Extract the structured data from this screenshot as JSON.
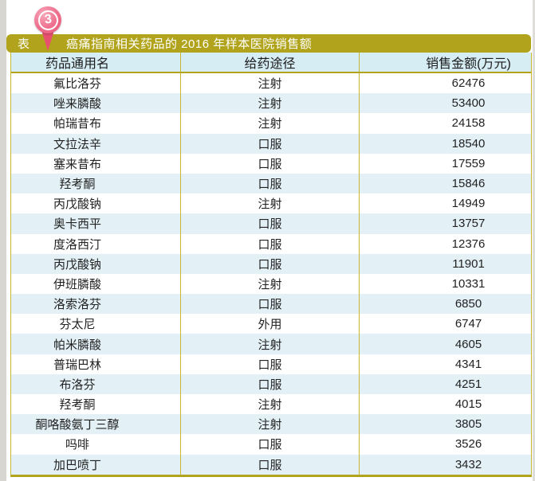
{
  "ui": {
    "badge": {
      "number": "3"
    },
    "title_bar": {
      "prefix": "表",
      "title": "癌痛指南相关药品的 2016 年样本医院销售额"
    }
  },
  "chart_data": {
    "type": "table",
    "title": "表3 癌痛指南相关药品的 2016 年样本医院销售额",
    "columns": [
      "药品通用名",
      "给药途径",
      "销售金额(万元)"
    ],
    "rows": [
      [
        "氟比洛芬",
        "注射",
        "62476"
      ],
      [
        "唑来膦酸",
        "注射",
        "53400"
      ],
      [
        "帕瑞昔布",
        "注射",
        "24158"
      ],
      [
        "文拉法辛",
        "口服",
        "18540"
      ],
      [
        "塞来昔布",
        "口服",
        "17559"
      ],
      [
        "羟考酮",
        "口服",
        "15846"
      ],
      [
        "丙戊酸钠",
        "注射",
        "14949"
      ],
      [
        "奥卡西平",
        "口服",
        "13757"
      ],
      [
        "度洛西汀",
        "口服",
        "12376"
      ],
      [
        "丙戊酸钠",
        "口服",
        "11901"
      ],
      [
        "伊班膦酸",
        "注射",
        "10331"
      ],
      [
        "洛索洛芬",
        "口服",
        "6850"
      ],
      [
        "芬太尼",
        "外用",
        "6747"
      ],
      [
        "帕米膦酸",
        "注射",
        "4605"
      ],
      [
        "普瑞巴林",
        "口服",
        "4341"
      ],
      [
        "布洛芬",
        "口服",
        "4251"
      ],
      [
        "羟考酮",
        "注射",
        "4015"
      ],
      [
        "酮咯酸氨丁三醇",
        "注射",
        "3805"
      ],
      [
        "吗啡",
        "口服",
        "3526"
      ],
      [
        "加巴喷丁",
        "口服",
        "3432"
      ]
    ],
    "legend": "none",
    "grid": "zebra-stripes"
  },
  "colors": {
    "olive_bar": "#b1a41c",
    "table_line": "#c9b733",
    "header_bg": "#d7edf4",
    "stripe_bg": "#e3f1f7",
    "pin_pink": "#ee6d8c",
    "pin_tail": "#e7506e",
    "text": "#222222"
  }
}
